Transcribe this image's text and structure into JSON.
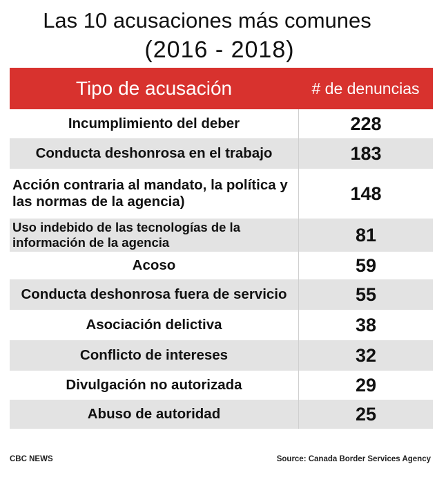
{
  "chart_data": {
    "type": "table",
    "title": "Las 10 acusaciones más comunes",
    "subtitle": "(2016 - 2018)",
    "columns": [
      "Tipo de acusación",
      "# de denuncias"
    ],
    "categories": [
      "Incumplimiento del deber",
      "Conducta deshonrosa en el trabajo",
      "Acción contraria al mandato, la política y las normas de la agencia)",
      "Uso indebido de las tecnologías de la información de la agencia",
      "Acoso",
      "Conducta deshonrosa fuera de servicio",
      "Asociación delictiva",
      "Conflicto de intereses",
      "Divulgación no autorizada",
      "Abuso de autoridad"
    ],
    "values": [
      228,
      183,
      148,
      81,
      59,
      55,
      38,
      32,
      29,
      25
    ]
  },
  "footer": {
    "credit": "CBC NEWS",
    "source": "Source:  Canada Border Services Agency"
  },
  "colors": {
    "header_bg": "#d8322e",
    "alt_row_bg": "#e3e3e3"
  }
}
